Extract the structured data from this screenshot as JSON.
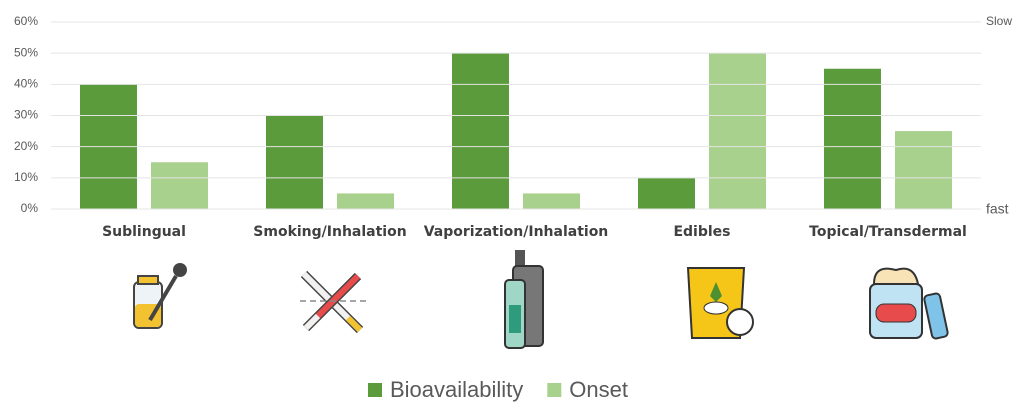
{
  "chart_data": {
    "type": "bar",
    "categories": [
      "Sublingual",
      "Smoking/Inhalation",
      "Vaporization/Inhalation",
      "Edibles",
      "Topical/Transdermal"
    ],
    "series": [
      {
        "name": "Bioavailability",
        "color": "#5c9b3c",
        "values": [
          40,
          30,
          50,
          10,
          45
        ]
      },
      {
        "name": "Onset",
        "color": "#a9d18e",
        "values": [
          15,
          5,
          5,
          50,
          25
        ]
      }
    ],
    "ylim": [
      0,
      60
    ],
    "yticks": [
      {
        "value": 0,
        "label": "0%"
      },
      {
        "value": 10,
        "label": "10%"
      },
      {
        "value": 20,
        "label": "20%"
      },
      {
        "value": 30,
        "label": "30%"
      },
      {
        "value": 40,
        "label": "40%"
      },
      {
        "value": 50,
        "label": "50%"
      },
      {
        "value": 60,
        "label": "60%"
      }
    ],
    "right_axis_top_label": "Slow",
    "right_axis_bottom_label": "fast",
    "grid": true,
    "legend": "bottom"
  }
}
